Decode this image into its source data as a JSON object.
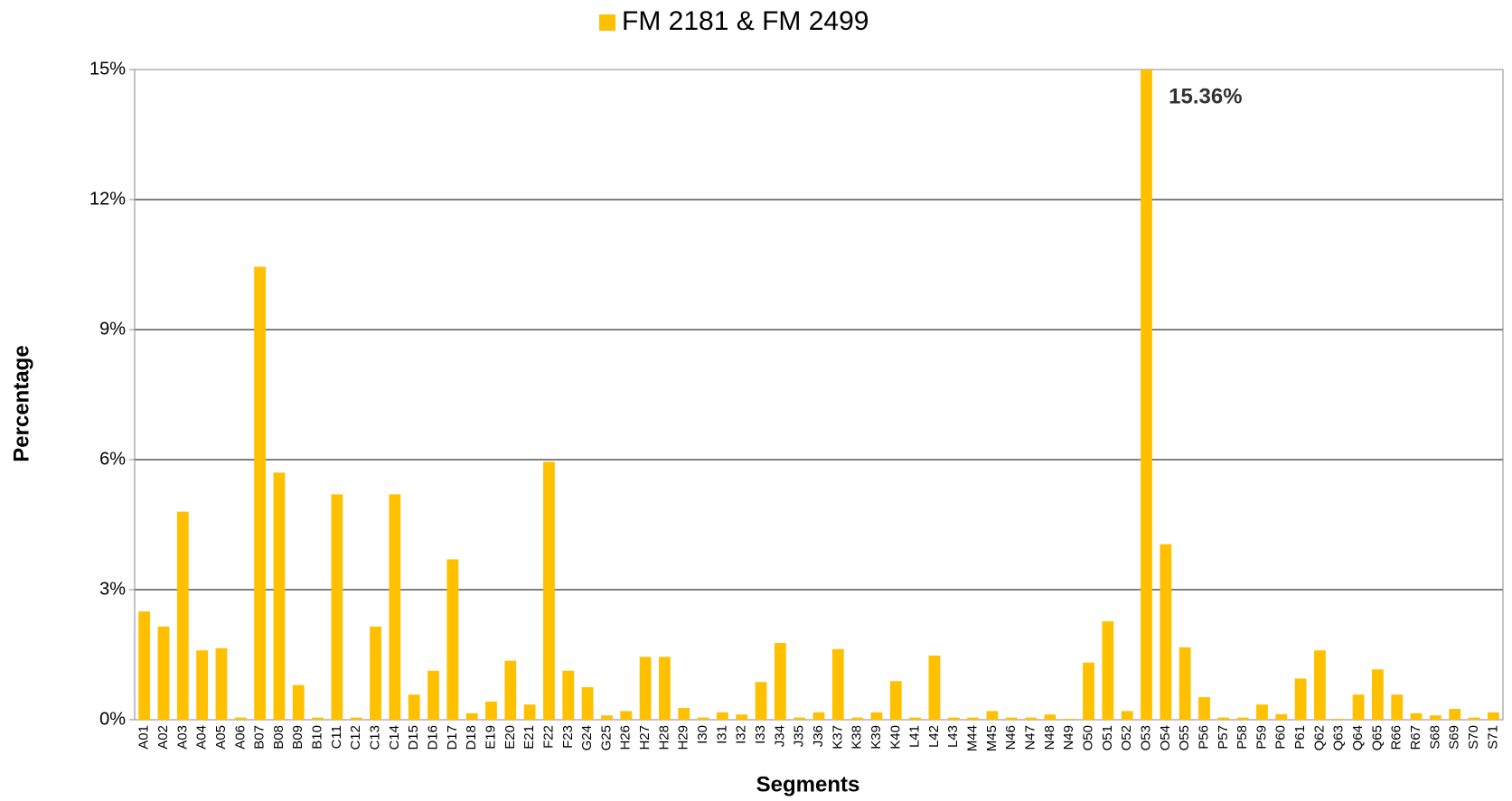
{
  "chart_data": {
    "type": "bar",
    "legend": "top",
    "x_label": "Segments",
    "y_label": "Percentage",
    "categories": [
      "A01",
      "A02",
      "A03",
      "A04",
      "A05",
      "A06",
      "B07",
      "B08",
      "B09",
      "B10",
      "C11",
      "C12",
      "C13",
      "C14",
      "D15",
      "D16",
      "D17",
      "D18",
      "E19",
      "E20",
      "E21",
      "F22",
      "F23",
      "G24",
      "G25",
      "H26",
      "H27",
      "H28",
      "H29",
      "I30",
      "I31",
      "I32",
      "I33",
      "J34",
      "J35",
      "J36",
      "K37",
      "K38",
      "K39",
      "K40",
      "L41",
      "L42",
      "L43",
      "M44",
      "M45",
      "N46",
      "N47",
      "N48",
      "N49",
      "O50",
      "O51",
      "O52",
      "O53",
      "O54",
      "O55",
      "P56",
      "P57",
      "P58",
      "P59",
      "P60",
      "P61",
      "Q62",
      "Q63",
      "Q64",
      "Q65",
      "R66",
      "R67",
      "S68",
      "S69",
      "S70",
      "S71"
    ],
    "series": [
      {
        "name": "FM 2181 & FM 2499",
        "color": "#FFC000",
        "values": [
          2.5,
          2.15,
          4.8,
          1.6,
          1.65,
          0.05,
          10.45,
          5.7,
          0.8,
          0.05,
          5.2,
          0.05,
          2.15,
          5.2,
          0.58,
          1.13,
          3.7,
          0.15,
          0.42,
          1.36,
          0.35,
          5.95,
          1.13,
          0.75,
          0.1,
          0.2,
          1.45,
          1.45,
          0.27,
          0.05,
          0.17,
          0.12,
          0.87,
          1.77,
          0.05,
          0.17,
          1.63,
          0.05,
          0.17,
          0.89,
          0.05,
          1.48,
          0.05,
          0.05,
          0.2,
          0.05,
          0.05,
          0.12,
          0.02,
          1.32,
          2.27,
          0.2,
          15.36,
          4.05,
          1.67,
          0.52,
          0.05,
          0.05,
          0.35,
          0.13,
          0.95,
          1.6,
          0.02,
          0.58,
          1.16,
          0.58,
          0.15,
          0.1,
          0.25,
          0.05,
          0.17
        ],
        "value_labels": [
          null,
          null,
          null,
          null,
          null,
          null,
          null,
          null,
          null,
          null,
          null,
          null,
          null,
          null,
          null,
          null,
          null,
          null,
          null,
          null,
          null,
          null,
          null,
          null,
          null,
          null,
          null,
          null,
          null,
          null,
          null,
          null,
          null,
          null,
          null,
          null,
          null,
          null,
          null,
          null,
          null,
          null,
          null,
          null,
          null,
          null,
          null,
          null,
          null,
          null,
          null,
          null,
          "15.36%",
          null,
          null,
          null,
          null,
          null,
          null,
          null,
          null,
          null,
          null,
          null,
          null,
          null,
          null,
          null,
          null,
          null,
          null
        ]
      }
    ],
    "ylim": [
      0,
      15
    ],
    "yticks": [
      {
        "value": 0,
        "label": "0%"
      },
      {
        "value": 3,
        "label": "3%"
      },
      {
        "value": 6,
        "label": "6%"
      },
      {
        "value": 9,
        "label": "9%"
      },
      {
        "value": 12,
        "label": "12%"
      },
      {
        "value": 15,
        "label": "15%"
      }
    ],
    "grid": true
  }
}
